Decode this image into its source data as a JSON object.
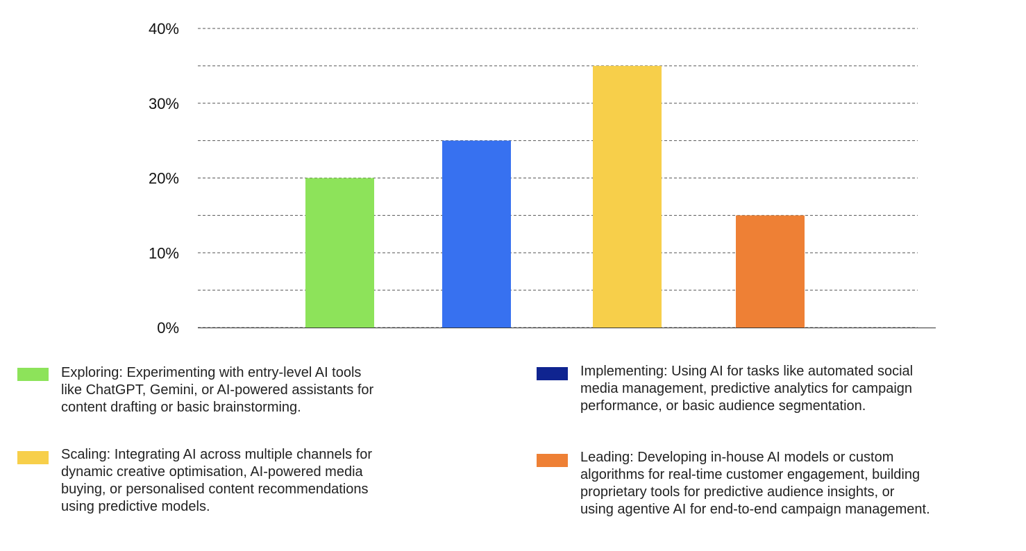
{
  "chart_data": {
    "type": "bar",
    "categories": [
      "Exploring",
      "Implementing",
      "Scaling",
      "Leading"
    ],
    "values": [
      20,
      25,
      35,
      15
    ],
    "colors": [
      "#8de35a",
      "#3771f0",
      "#f7cf4a",
      "#ee8035"
    ],
    "ylim": [
      0,
      40
    ],
    "yticks": [
      0,
      10,
      20,
      30,
      40
    ],
    "ytick_labels": [
      "0%",
      "10%",
      "20%",
      "30%",
      "40%"
    ],
    "grid": "dashed horizontal every 5%",
    "legend_placement": "bottom",
    "legend": [
      {
        "category": "Exploring",
        "color": "#8de35a",
        "lines": [
          "Exploring: Experimenting with entry-level AI tools",
          "like ChatGPT, Gemini, or AI-powered assistants for",
          "content drafting or basic brainstorming."
        ]
      },
      {
        "category": "Implementing",
        "color": "#0f2490",
        "lines": [
          "Implementing: Using AI for tasks like automated social",
          "media management, predictive analytics for campaign",
          "performance, or basic audience segmentation."
        ]
      },
      {
        "category": "Scaling",
        "color": "#f7cf4a",
        "lines": [
          "Scaling: Integrating AI across multiple channels for",
          "dynamic creative optimisation, AI-powered media",
          "buying, or personalised content recommendations",
          "using predictive models."
        ]
      },
      {
        "category": "Leading",
        "color": "#ee8035",
        "lines": [
          "Leading: Developing in-house AI models or custom",
          "algorithms for real-time customer engagement, building",
          "proprietary tools for predictive audience insights, or",
          "using agentive AI for end-to-end campaign management."
        ]
      }
    ]
  }
}
